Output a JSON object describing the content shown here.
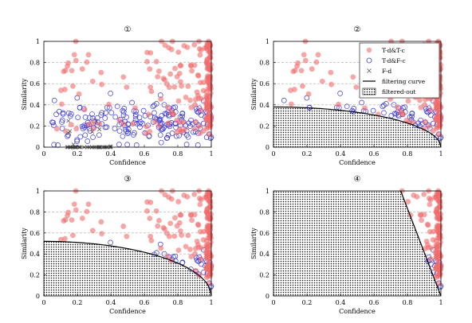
{
  "chart_data": [
    {
      "type": "scatter",
      "title": "①",
      "xlabel": "Confidence",
      "ylabel": "Similarity",
      "xlim": [
        0,
        1
      ],
      "ylim": [
        0,
        1
      ],
      "xticks": [
        "0",
        "0.2",
        "0.4",
        "0.6",
        "0.8",
        "1"
      ],
      "yticks": [
        "0",
        "0.2",
        "0.4",
        "0.6",
        "0.8",
        "1"
      ],
      "grid": "dashed-horizontal",
      "filtering_curve": null
    },
    {
      "type": "scatter",
      "title": "②",
      "xlabel": "Confidence",
      "ylabel": "Similarity",
      "xlim": [
        0,
        1
      ],
      "ylim": [
        0,
        1
      ],
      "xticks": [
        "0",
        "0.2",
        "0.4",
        "0.6",
        "0.8",
        "1"
      ],
      "yticks": [
        "0",
        "0.2",
        "0.4",
        "0.6",
        "0.8",
        "1"
      ],
      "grid": "dashed-horizontal",
      "filtering_curve": {
        "kind": "ellipse",
        "a": 1.0,
        "b": 0.38
      },
      "legend_placement": "top-right",
      "legend": [
        {
          "label": "T-d&T-c",
          "symbol": "filled-circle",
          "color": "#f26b6b"
        },
        {
          "label": "T-d&F-c",
          "symbol": "open-circle",
          "color": "#3a3ad6"
        },
        {
          "label": "F-d",
          "symbol": "cross",
          "color": "#555555"
        },
        {
          "label": "filtering curve",
          "symbol": "line",
          "color": "#000000"
        },
        {
          "label": "filtered-out",
          "symbol": "dotted-box",
          "color": "#000000"
        }
      ]
    },
    {
      "type": "scatter",
      "title": "③",
      "xlabel": "Confidence",
      "ylabel": "Similarity",
      "xlim": [
        0,
        1
      ],
      "ylim": [
        0,
        1
      ],
      "xticks": [
        "0",
        "0.2",
        "0.4",
        "0.6",
        "0.8",
        "1"
      ],
      "yticks": [
        "0",
        "0.2",
        "0.4",
        "0.6",
        "0.8",
        "1"
      ],
      "grid": "dashed-horizontal",
      "filtering_curve": {
        "kind": "ellipse",
        "a": 1.0,
        "b": 0.52
      }
    },
    {
      "type": "scatter",
      "title": "④",
      "xlabel": "Confidence",
      "ylabel": "Similarity",
      "xlim": [
        0,
        1
      ],
      "ylim": [
        0,
        1
      ],
      "xticks": [
        "0",
        "0.2",
        "0.4",
        "0.6",
        "0.8",
        "1"
      ],
      "yticks": [
        "0",
        "0.2",
        "0.4",
        "0.6",
        "0.8",
        "1"
      ],
      "grid": "dashed-horizontal",
      "filtering_curve": {
        "kind": "line",
        "points": [
          [
            0.76,
            1.0
          ],
          [
            1.0,
            0.0
          ]
        ]
      }
    }
  ],
  "series_style": {
    "td_tc": {
      "color": "#f26b6b",
      "opacity": 0.6,
      "symbol": "filled-circle"
    },
    "td_fc": {
      "color": "#3a3ad6",
      "symbol": "open-circle"
    },
    "fd": {
      "color": "#555555",
      "symbol": "cross"
    }
  }
}
